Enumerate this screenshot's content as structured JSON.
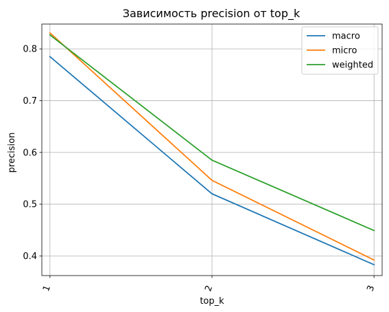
{
  "chart_data": {
    "type": "line",
    "title": "Зависимость precision от top_k",
    "xlabel": "top_k",
    "ylabel": "precision",
    "categories": [
      "1",
      "2",
      "3"
    ],
    "x": [
      1,
      2,
      3
    ],
    "xlim": [
      0.95,
      3.05
    ],
    "ylim": [
      0.362,
      0.848
    ],
    "yticks": [
      0.4,
      0.5,
      0.6,
      0.7,
      0.8
    ],
    "ytick_labels": [
      "0.4",
      "0.5",
      "0.6",
      "0.7",
      "0.8"
    ],
    "grid": true,
    "legend_position": "top-right",
    "series": [
      {
        "name": "macro",
        "color": "#1f77b4",
        "values": [
          0.785,
          0.52,
          0.383
        ]
      },
      {
        "name": "micro",
        "color": "#ff7f0e",
        "values": [
          0.831,
          0.546,
          0.392
        ]
      },
      {
        "name": "weighted",
        "color": "#2ca02c",
        "values": [
          0.827,
          0.585,
          0.449
        ]
      }
    ]
  }
}
